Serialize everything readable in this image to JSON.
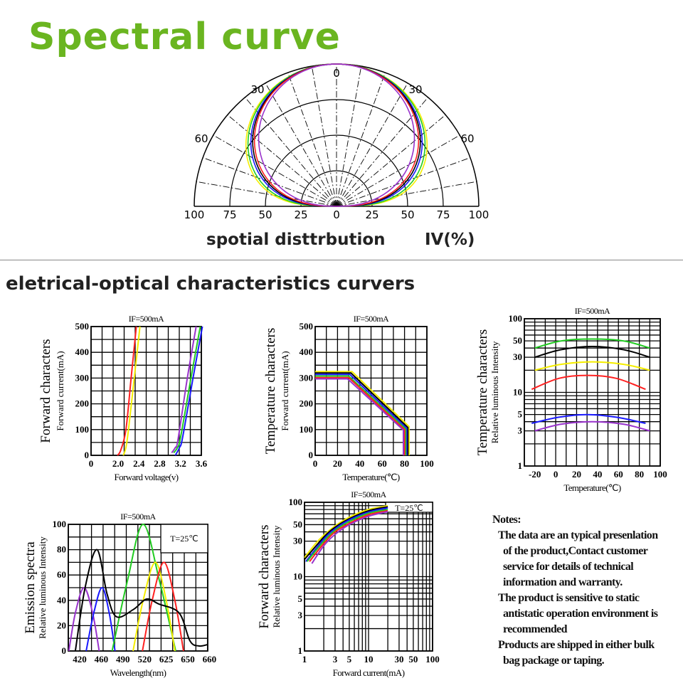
{
  "header": {
    "title": "Spectral curve"
  },
  "polar_caption": {
    "label": "spotial disttrbution",
    "unit": "IV(%)"
  },
  "section": {
    "title": "eletrical-optical characteristics curvers"
  },
  "notes": {
    "title": "Notes:",
    "lines": [
      "The data are an typical presenlation",
      "of the product,Contact customer",
      "service for details of technical",
      "information and warranty.",
      "The product is sensitive to static",
      "antistatic operation environment is",
      "recommended",
      "Products are shipped in either bulk",
      "bag package or taping."
    ]
  },
  "colors": {
    "title_green": "#6ab520",
    "yellow": "#f5ee00",
    "green": "#22cc22",
    "blue": "#1a1aff",
    "black": "#000000",
    "red": "#ff2020",
    "purple": "#9933cc"
  },
  "chart_data": [
    {
      "id": "polar",
      "type": "polar",
      "title": "spotial disttrbution",
      "rlabel": "IV(%)",
      "radial_ticks": [
        "100",
        "75",
        "50",
        "25",
        "0",
        "25",
        "50",
        "75",
        "100"
      ],
      "angle_ticks": [
        "0",
        "30",
        "30",
        "60",
        "60"
      ],
      "series": [
        {
          "name": "yellow",
          "color": "#f5ee00",
          "intensity_at_60deg": 73
        },
        {
          "name": "green",
          "color": "#22cc22",
          "intensity_at_60deg": 71
        },
        {
          "name": "blue",
          "color": "#1a1aff",
          "intensity_at_60deg": 68
        },
        {
          "name": "black",
          "color": "#000000",
          "intensity_at_60deg": 66
        },
        {
          "name": "red",
          "color": "#ff2020",
          "intensity_at_60deg": 64
        },
        {
          "name": "purple",
          "color": "#9933cc",
          "intensity_at_60deg": 59
        }
      ]
    },
    {
      "id": "forward",
      "type": "line",
      "title": "IF=500mA",
      "ylabel_main": "Forward characters",
      "ylabel": "Forward current(mA)",
      "xlabel": "Forward voltage(v)",
      "xticks": [
        "0",
        "2.0",
        "2.4",
        "2.8",
        "3.2",
        "3.6"
      ],
      "yticks": [
        "0",
        "100",
        "200",
        "300",
        "400",
        "500"
      ],
      "ylim": [
        0,
        500
      ],
      "series": [
        {
          "name": "red",
          "color": "#ff2020",
          "points": [
            [
              1.95,
              0
            ],
            [
              2.05,
              20
            ],
            [
              2.15,
              100
            ],
            [
              2.25,
              300
            ],
            [
              2.35,
              500
            ]
          ]
        },
        {
          "name": "yellow",
          "color": "#f5ee00",
          "points": [
            [
              2.1,
              0
            ],
            [
              2.15,
              30
            ],
            [
              2.2,
              100
            ],
            [
              2.31,
              300
            ],
            [
              2.42,
              500
            ]
          ]
        },
        {
          "name": "purple",
          "color": "#9933cc",
          "points": [
            [
              3.03,
              10
            ],
            [
              3.1,
              30
            ],
            [
              3.15,
              60
            ],
            [
              3.33,
              300
            ],
            [
              3.5,
              500
            ]
          ]
        },
        {
          "name": "green",
          "color": "#22cc22",
          "points": [
            [
              3.07,
              10
            ],
            [
              3.14,
              30
            ],
            [
              3.2,
              70
            ],
            [
              3.4,
              300
            ],
            [
              3.58,
              500
            ]
          ]
        },
        {
          "name": "blue",
          "color": "#1a1aff",
          "points": [
            [
              3.1,
              0
            ],
            [
              3.18,
              30
            ],
            [
              3.24,
              70
            ],
            [
              3.44,
              300
            ],
            [
              3.62,
              500
            ]
          ]
        }
      ]
    },
    {
      "id": "temperature",
      "type": "line",
      "title": "IF=500mA",
      "ylabel_main": "Temperature characters",
      "ylabel": "Forward current(mA)",
      "xlabel": "Temperature(℃)",
      "xticks": [
        "0",
        "20",
        "40",
        "60",
        "80",
        "100"
      ],
      "yticks": [
        "0",
        "100",
        "200",
        "300",
        "400",
        "500"
      ],
      "xlim": [
        0,
        100
      ],
      "ylim": [
        0,
        500
      ],
      "series": [
        {
          "name": "yellow",
          "color": "#f5ee00",
          "points": [
            [
              0,
              325
            ],
            [
              33,
              325
            ],
            [
              84,
              112
            ],
            [
              84,
              0
            ]
          ]
        },
        {
          "name": "black",
          "color": "#000000",
          "points": [
            [
              0,
              320
            ],
            [
              32,
              320
            ],
            [
              83,
              108
            ],
            [
              83,
              0
            ]
          ]
        },
        {
          "name": "blue",
          "color": "#1a1aff",
          "points": [
            [
              0,
              314
            ],
            [
              31,
              314
            ],
            [
              82,
              105
            ],
            [
              82,
              0
            ]
          ]
        },
        {
          "name": "green",
          "color": "#22cc22",
          "points": [
            [
              0,
              308
            ],
            [
              30,
              308
            ],
            [
              81,
              102
            ],
            [
              81,
              0
            ]
          ]
        },
        {
          "name": "red",
          "color": "#ff2020",
          "points": [
            [
              0,
              302
            ],
            [
              30,
              302
            ],
            [
              80,
              100
            ],
            [
              80,
              0
            ]
          ]
        },
        {
          "name": "purple",
          "color": "#9933cc",
          "points": [
            [
              0,
              297
            ],
            [
              29,
              297
            ],
            [
              79,
              98
            ],
            [
              79,
              0
            ]
          ]
        }
      ]
    },
    {
      "id": "temperature-luminous",
      "type": "line",
      "title": "IF=500mA",
      "ylabel_main": "Temperature characters",
      "ylabel": "Relative luminous Intensity",
      "xlabel": "Temperature(℃)",
      "xticks": [
        "-20",
        "0",
        "20",
        "40",
        "60",
        "80",
        "100"
      ],
      "yticks": [
        "1",
        "3",
        "5",
        "10",
        "30",
        "50",
        "100"
      ],
      "xlim": [
        -30,
        100
      ],
      "ylim": [
        1,
        100
      ],
      "yscale": "log",
      "series": [
        {
          "name": "green",
          "color": "#22cc22",
          "points": [
            [
              -20,
              40
            ],
            [
              5,
              50
            ],
            [
              35,
              53
            ],
            [
              65,
              50
            ],
            [
              90,
              40
            ]
          ]
        },
        {
          "name": "black",
          "color": "#000000",
          "points": [
            [
              -20,
              30
            ],
            [
              5,
              38
            ],
            [
              35,
              42
            ],
            [
              65,
              38
            ],
            [
              90,
              30
            ]
          ]
        },
        {
          "name": "yellow",
          "color": "#f5ee00",
          "points": [
            [
              -20,
              20
            ],
            [
              5,
              24
            ],
            [
              35,
              26
            ],
            [
              65,
              24
            ],
            [
              90,
              20
            ]
          ]
        },
        {
          "name": "red",
          "color": "#ff2020",
          "points": [
            [
              -23,
              11
            ],
            [
              3,
              15.5
            ],
            [
              30,
              17
            ],
            [
              58,
              15.5
            ],
            [
              86,
              11
            ]
          ]
        },
        {
          "name": "blue",
          "color": "#1a1aff",
          "points": [
            [
              -23,
              3.8
            ],
            [
              3,
              4.6
            ],
            [
              30,
              5
            ],
            [
              58,
              4.6
            ],
            [
              86,
              3.8
            ]
          ]
        },
        {
          "name": "purple",
          "color": "#9933cc",
          "points": [
            [
              -20,
              3
            ],
            [
              5,
              3.7
            ],
            [
              35,
              4
            ],
            [
              65,
              3.7
            ],
            [
              90,
              3
            ]
          ]
        }
      ]
    },
    {
      "id": "emission",
      "type": "line",
      "title": "IF=500mA",
      "annotation": "T=25℃",
      "ylabel_main": "Emission spectra",
      "ylabel": "Relative luminous Intensity",
      "xlabel": "Wavelength(nm)",
      "xticks": [
        "420",
        "460",
        "490",
        "520",
        "625",
        "650",
        "660"
      ],
      "yticks": [
        "0",
        "20",
        "40",
        "60",
        "80",
        "100"
      ],
      "ylim": [
        0,
        100
      ],
      "series": [
        {
          "name": "purple",
          "color": "#9933cc",
          "points": [
            [
              400,
              0
            ],
            [
              412,
              30
            ],
            [
              428,
              50
            ],
            [
              444,
              30
            ],
            [
              456,
              0
            ]
          ]
        },
        {
          "name": "blue",
          "color": "#1a1aff",
          "points": [
            [
              432,
              0
            ],
            [
              446,
              30
            ],
            [
              461,
              50
            ],
            [
              471,
              30
            ],
            [
              479,
              0
            ]
          ]
        },
        {
          "name": "green",
          "color": "#22cc22",
          "points": [
            [
              475,
              0
            ],
            [
              496,
              55
            ],
            [
              518,
              100
            ],
            [
              593,
              55
            ],
            [
              636,
              0
            ]
          ]
        },
        {
          "name": "yellow",
          "color": "#f5ee00",
          "points": [
            [
              504,
              0
            ],
            [
              518,
              40
            ],
            [
              572,
              70
            ],
            [
              625,
              40
            ],
            [
              635,
              0
            ]
          ]
        },
        {
          "name": "red",
          "color": "#ff2020",
          "points": [
            [
              517,
              0
            ],
            [
              557,
              40
            ],
            [
              614,
              70
            ],
            [
              635,
              40
            ],
            [
              645,
              0
            ]
          ]
        },
        {
          "name": "black",
          "color": "#000000",
          "points": [
            [
              412,
              0
            ],
            [
              430,
              50
            ],
            [
              452,
              80
            ],
            [
              468,
              45
            ],
            [
              481,
              27
            ],
            [
              505,
              33
            ],
            [
              530,
              41
            ],
            [
              590,
              37
            ],
            [
              640,
              30
            ],
            [
              651,
              8
            ],
            [
              655,
              4
            ],
            [
              659,
              5
            ]
          ]
        }
      ]
    },
    {
      "id": "forward-luminous",
      "type": "line",
      "title": "IF=500mA",
      "annotation": "T=25℃",
      "ylabel_main": "Forward characters",
      "ylabel": "Relative luminous Intensity",
      "xlabel": "Forward current(mA)",
      "xticks": [
        "1",
        "3",
        "5",
        "10",
        "30",
        "50",
        "100"
      ],
      "yticks": [
        "1",
        "3",
        "5",
        "10",
        "30",
        "50",
        "100"
      ],
      "xlim": [
        1,
        100
      ],
      "ylim": [
        1,
        100
      ],
      "xscale": "log",
      "yscale": "log",
      "series": [
        {
          "name": "yellow",
          "color": "#f5ee00",
          "points": [
            [
              1,
              18
            ],
            [
              1.5,
              28
            ],
            [
              2,
              36
            ],
            [
              3,
              48
            ],
            [
              5,
              63
            ],
            [
              10,
              80
            ],
            [
              20,
              90
            ]
          ]
        },
        {
          "name": "black",
          "color": "#000000",
          "points": [
            [
              1,
              17
            ],
            [
              2,
              34
            ],
            [
              3,
              46
            ],
            [
              5,
              60
            ],
            [
              10,
              77
            ],
            [
              20,
              87
            ]
          ]
        },
        {
          "name": "blue",
          "color": "#1a1aff",
          "points": [
            [
              1.05,
              16
            ],
            [
              2,
              32
            ],
            [
              3,
              44
            ],
            [
              5,
              58
            ],
            [
              10,
              74
            ],
            [
              20,
              84
            ]
          ]
        },
        {
          "name": "green",
          "color": "#22cc22",
          "points": [
            [
              1.1,
              16
            ],
            [
              2,
              30
            ],
            [
              3,
              42
            ],
            [
              5,
              55
            ],
            [
              10,
              71
            ],
            [
              20,
              80
            ]
          ]
        },
        {
          "name": "red",
          "color": "#ff2020",
          "points": [
            [
              1.2,
              16
            ],
            [
              2,
              28
            ],
            [
              3,
              40
            ],
            [
              5,
              52
            ],
            [
              10,
              68
            ],
            [
              20,
              77
            ]
          ]
        },
        {
          "name": "purple",
          "color": "#9933cc",
          "points": [
            [
              1.3,
              15
            ],
            [
              2,
              26
            ],
            [
              3,
              37
            ],
            [
              5,
              50
            ],
            [
              10,
              65
            ],
            [
              20,
              75
            ]
          ]
        }
      ]
    }
  ]
}
